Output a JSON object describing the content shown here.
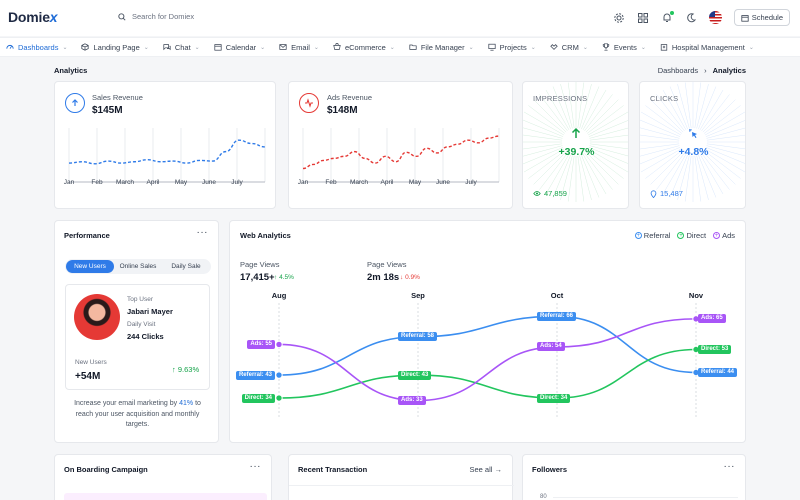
{
  "app": {
    "logo_main": "Domie",
    "logo_x": "x"
  },
  "search": {
    "placeholder": "Search for Domiex"
  },
  "topbar": {
    "icons": [
      "settings-icon",
      "grid-icon",
      "notification-icon",
      "moon-icon",
      "flag-icon"
    ],
    "schedule_label": "Schedule"
  },
  "nav": [
    {
      "label": "Dashboards",
      "icon": "dashboard-icon",
      "active": true
    },
    {
      "label": "Landing Page",
      "icon": "box-icon"
    },
    {
      "label": "Chat",
      "icon": "chat-icon"
    },
    {
      "label": "Calendar",
      "icon": "calendar-icon"
    },
    {
      "label": "Email",
      "icon": "mail-icon"
    },
    {
      "label": "eCommerce",
      "icon": "shop-icon"
    },
    {
      "label": "File Manager",
      "icon": "folder-icon"
    },
    {
      "label": "Projects",
      "icon": "monitor-icon"
    },
    {
      "label": "CRM",
      "icon": "crm-icon"
    },
    {
      "label": "Events",
      "icon": "trophy-icon"
    },
    {
      "label": "Hospital Management",
      "icon": "hospital-icon"
    }
  ],
  "page": {
    "title": "Analytics",
    "breadcrumb": [
      "Dashboards",
      "Analytics"
    ]
  },
  "sales": {
    "label": "Sales Revenue",
    "value": "$145M",
    "color": "#2f7be8",
    "months": [
      "Jan",
      "Feb",
      "March",
      "April",
      "May",
      "June",
      "July"
    ],
    "series": [
      28,
      30,
      27,
      31,
      28,
      30,
      33,
      30,
      31,
      28,
      32,
      31,
      45,
      62,
      57,
      52
    ]
  },
  "ads": {
    "label": "Ads Revenue",
    "value": "$148M",
    "color": "#e53935",
    "months": [
      "Jan",
      "Feb",
      "March",
      "April",
      "May",
      "June",
      "July"
    ],
    "series": [
      20,
      26,
      32,
      35,
      38,
      45,
      35,
      28,
      38,
      30,
      44,
      38,
      50,
      43,
      52,
      56,
      62,
      58,
      65,
      68
    ]
  },
  "impressions": {
    "label": "IMPRESSIONS",
    "pct": "+39.7%",
    "foot": "47,859",
    "color": "#16a34a"
  },
  "clicks": {
    "label": "CLICKS",
    "pct": "+4.8%",
    "foot": "15,487",
    "color": "#2f7be8"
  },
  "performance": {
    "title": "Performance",
    "tabs": [
      "New Users",
      "Online Sales",
      "Daily Sale"
    ],
    "top_user_label": "Top User",
    "top_user_name": "Jabari Mayer",
    "daily_visit_label": "Daily Visit",
    "daily_visit_value": "244 Clicks",
    "new_users_label": "New Users",
    "new_users_value": "+54M",
    "new_users_delta": "9.63%",
    "text_before": "Increase your email marketing by ",
    "text_pct": "41%",
    "text_after": " to reach your user acquisition and monthly targets."
  },
  "web": {
    "title": "Web Analytics",
    "legend": [
      "Referral",
      "Direct",
      "Ads"
    ],
    "pv1_label": "Page Views",
    "pv1_value": "17,415+",
    "pv1_delta": "4.5%",
    "pv2_label": "Page Views",
    "pv2_value": "2m 18s",
    "pv2_delta": "0.9%"
  },
  "chart_data": {
    "type": "line",
    "categories": [
      "Aug",
      "Sep",
      "Oct",
      "Nov"
    ],
    "series": [
      {
        "name": "Referral",
        "values": [
          43,
          58,
          66,
          44
        ],
        "color": "#3b8ef0"
      },
      {
        "name": "Direct",
        "values": [
          34,
          43,
          34,
          53
        ],
        "color": "#22c55e"
      },
      {
        "name": "Ads",
        "values": [
          55,
          33,
          54,
          65
        ],
        "color": "#a855f7"
      }
    ],
    "ylim": [
      25,
      72
    ]
  },
  "bottom": {
    "onboarding": "On Boarding Campaign",
    "recent": "Recent Transaction",
    "see_all": "See all",
    "followers": "Followers",
    "followers_tick": "80"
  }
}
